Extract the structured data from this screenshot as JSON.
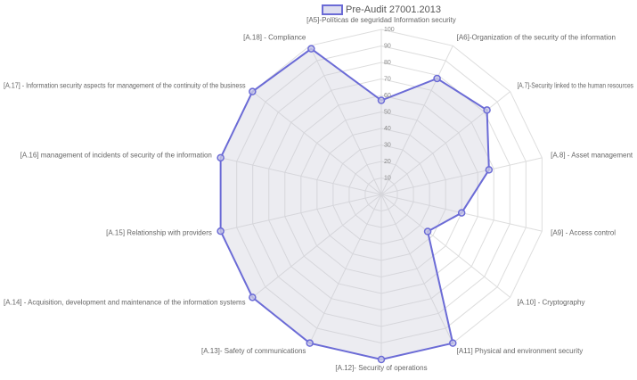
{
  "chart_data": {
    "type": "radar",
    "categories": [
      "[A5]-Políticas de seguridad Information security",
      "[A6]-Organization of the security of the information",
      "[A.7]-Security linked to the human resources",
      "[A.8] - Asset management",
      "[A9] - Access control",
      "[A.10] - Cryptography",
      "[A11] Physical and environment security",
      "[A.12]- Security of operations",
      "[A.13]- Safety of communications",
      "[A.14] - Acquisition, development and maintenance of the information systems",
      "[A.15] Relationship with providers",
      "[A.16] management of incidents of security of the information",
      "[A.17] - Information security aspects for management of the continuity of the business",
      "[A.18] - Compliance"
    ],
    "series": [
      {
        "name": "Pre-Audit 27001.2013",
        "color": "#6b6bd6",
        "values": [
          57,
          78,
          82,
          67,
          50,
          36,
          100,
          100,
          100,
          100,
          100,
          100,
          100,
          98
        ]
      }
    ],
    "rlim": [
      0,
      100
    ],
    "rticks": [
      10,
      20,
      30,
      40,
      50,
      60,
      70,
      80,
      90,
      100
    ],
    "grid": true,
    "legend": "top"
  }
}
